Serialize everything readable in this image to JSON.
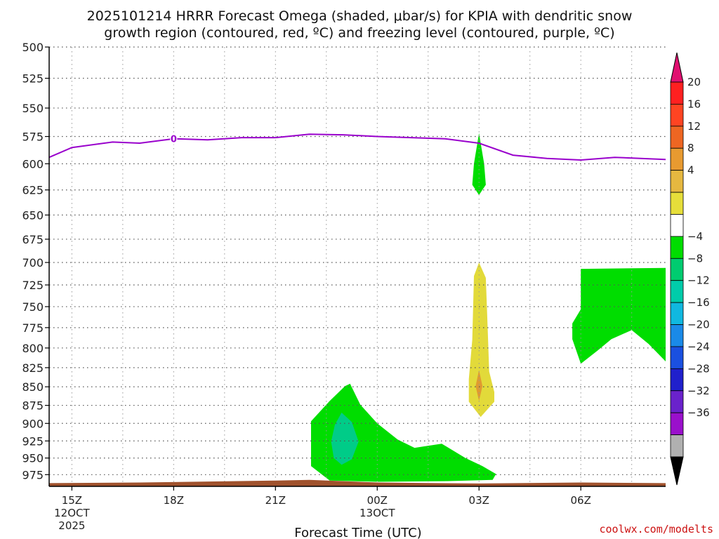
{
  "chart_data": {
    "type": "heatmap",
    "title_line1": "2025101214 HRRR Forecast Omega (shaded, μbar/s) for KPIA with dendritic snow",
    "title_line2": "growth region (contoured, red, ºC) and freezing level (contoured, purple, ºC)",
    "xlabel": "Forecast Time (UTC)",
    "credit": "coolwx.com/modelts",
    "x_range_hours": [
      14.33,
      32.5
    ],
    "pressure_levels": [
      500,
      525,
      550,
      575,
      600,
      625,
      650,
      675,
      700,
      725,
      750,
      775,
      800,
      825,
      850,
      875,
      900,
      925,
      950,
      975
    ],
    "pressure_range": [
      500,
      993
    ],
    "x_ticks": [
      {
        "hour": 15,
        "label": "15Z",
        "sub1": "12OCT",
        "sub2": "2025"
      },
      {
        "hour": 18,
        "label": "18Z",
        "sub1": "",
        "sub2": ""
      },
      {
        "hour": 21,
        "label": "21Z",
        "sub1": "",
        "sub2": ""
      },
      {
        "hour": 24,
        "label": "00Z",
        "sub1": "13OCT",
        "sub2": ""
      },
      {
        "hour": 27,
        "label": "03Z",
        "sub1": "",
        "sub2": ""
      },
      {
        "hour": 30,
        "label": "06Z",
        "sub1": "",
        "sub2": ""
      }
    ],
    "freezing_level": {
      "color": "#9900cc",
      "label": "0",
      "label_at": [
        18,
        577
      ],
      "points": [
        [
          14.33,
          594
        ],
        [
          15,
          585
        ],
        [
          16.2,
          580
        ],
        [
          17,
          581
        ],
        [
          18,
          577
        ],
        [
          19,
          578
        ],
        [
          20,
          576
        ],
        [
          21,
          576
        ],
        [
          22,
          573
        ],
        [
          23,
          573.5
        ],
        [
          24,
          575
        ],
        [
          25,
          576
        ],
        [
          26,
          577
        ],
        [
          27,
          581
        ],
        [
          28,
          592
        ],
        [
          29,
          595
        ],
        [
          30,
          596.5
        ],
        [
          31,
          594
        ],
        [
          32.5,
          596
        ]
      ]
    },
    "terrain": {
      "color": "#a0522d",
      "points": [
        [
          14.33,
          988
        ],
        [
          17,
          987
        ],
        [
          21,
          984
        ],
        [
          22,
          983
        ],
        [
          24,
          987
        ],
        [
          27,
          988.5
        ],
        [
          30,
          987
        ],
        [
          32.5,
          988
        ]
      ]
    },
    "omega_regions": [
      {
        "level": -6,
        "color": "#00dd00",
        "points": [
          [
            27,
            572
          ],
          [
            27.15,
            600
          ],
          [
            27.2,
            620
          ],
          [
            27,
            630
          ],
          [
            26.8,
            620
          ],
          [
            26.85,
            600
          ]
        ]
      },
      {
        "level": -6,
        "color": "#00dd00",
        "points": [
          [
            22.05,
            897
          ],
          [
            22.6,
            869
          ],
          [
            23.05,
            849
          ],
          [
            23.2,
            846
          ],
          [
            23.5,
            874
          ],
          [
            24.0,
            900
          ],
          [
            24.6,
            923
          ],
          [
            25.1,
            935
          ],
          [
            25.9,
            929
          ],
          [
            26.6,
            950
          ],
          [
            27.1,
            962
          ],
          [
            27.5,
            974
          ],
          [
            27.4,
            983
          ],
          [
            26.0,
            985
          ],
          [
            24.0,
            986
          ],
          [
            22.6,
            984
          ],
          [
            22.05,
            962
          ]
        ]
      },
      {
        "level": -10,
        "color": "#00cc88",
        "points": [
          [
            22.75,
            902
          ],
          [
            22.95,
            885
          ],
          [
            23.25,
            898
          ],
          [
            23.45,
            926
          ],
          [
            23.25,
            952
          ],
          [
            22.95,
            960
          ],
          [
            22.72,
            950
          ],
          [
            22.64,
            926
          ]
        ]
      },
      {
        "level": 6,
        "color": "#e2da3a",
        "points": [
          [
            26.85,
            715
          ],
          [
            27.0,
            700
          ],
          [
            27.2,
            717
          ],
          [
            27.25,
            770
          ],
          [
            27.3,
            830
          ],
          [
            27.45,
            857
          ],
          [
            27.45,
            870
          ],
          [
            27.05,
            891
          ],
          [
            26.7,
            870
          ],
          [
            26.7,
            840
          ],
          [
            26.8,
            790
          ]
        ]
      },
      {
        "level": 10,
        "color": "#e09a30",
        "points": [
          [
            27,
            828
          ],
          [
            27.1,
            849
          ],
          [
            27,
            869
          ],
          [
            26.9,
            849
          ]
        ]
      },
      {
        "level": -6,
        "color": "#00dd00",
        "points": [
          [
            30.0,
            707
          ],
          [
            32.5,
            706
          ],
          [
            32.5,
            817
          ],
          [
            32.0,
            795
          ],
          [
            31.5,
            778
          ],
          [
            30.9,
            789
          ],
          [
            30.5,
            803
          ],
          [
            30.0,
            820
          ],
          [
            29.75,
            789
          ],
          [
            29.75,
            770
          ],
          [
            30.0,
            753
          ]
        ]
      }
    ],
    "colorbar": {
      "label_values": [
        "20",
        "16",
        "12",
        "8",
        "4",
        "−4",
        "−8",
        "−12",
        "−16",
        "−20",
        "−24",
        "−28",
        "−32",
        "−36"
      ],
      "segments": [
        {
          "color": "#ff2020"
        },
        {
          "color": "#ff4422"
        },
        {
          "color": "#ee6622"
        },
        {
          "color": "#e89a30"
        },
        {
          "color": "#e6b840"
        },
        {
          "color": "#e6de3a"
        },
        {
          "color": "#ffffff"
        },
        {
          "color": "#00dd00"
        },
        {
          "color": "#00cc70"
        },
        {
          "color": "#00ccaa"
        },
        {
          "color": "#10b8e0"
        },
        {
          "color": "#1a8ae8"
        },
        {
          "color": "#1a50e0"
        },
        {
          "color": "#2020cc"
        },
        {
          "color": "#6a22cc"
        },
        {
          "color": "#9a10cc"
        },
        {
          "color": "#b0b0b0"
        }
      ],
      "top_arrow_color": "#e01070",
      "bottom_arrow_color": "#000000"
    }
  }
}
